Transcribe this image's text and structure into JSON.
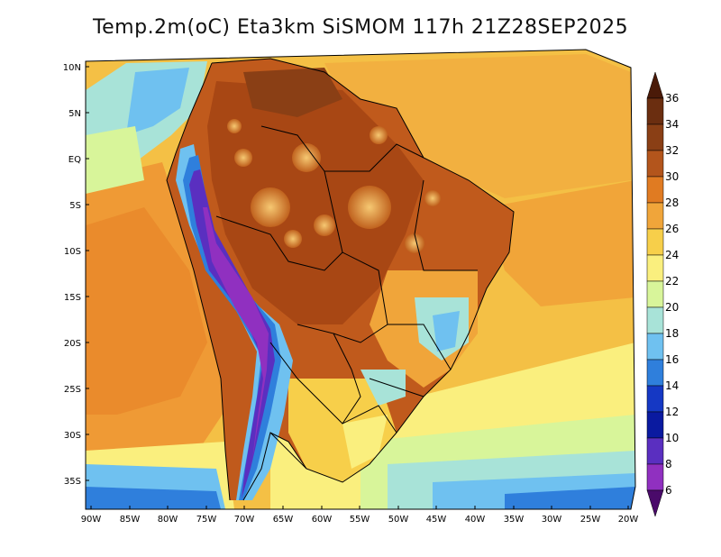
{
  "title": "Temp.2m(oC) Eta3km SiSMOM 117h 21Z28SEP2025",
  "lat_labels": [
    "10N",
    "5N",
    "EQ",
    "5S",
    "10S",
    "15S",
    "20S",
    "25S",
    "30S",
    "35S"
  ],
  "lon_labels": [
    "90W",
    "85W",
    "80W",
    "75W",
    "70W",
    "65W",
    "60W",
    "55W",
    "50W",
    "45W",
    "40W",
    "35W",
    "30W",
    "25W",
    "20W"
  ],
  "colorbar": {
    "labels": [
      "36",
      "34",
      "32",
      "30",
      "28",
      "26",
      "24",
      "22",
      "20",
      "18",
      "16",
      "14",
      "12",
      "10",
      "8",
      "6"
    ],
    "colors": [
      "#4a1a08",
      "#6b2e10",
      "#8a3f15",
      "#b3551c",
      "#e07b22",
      "#f0a53a",
      "#f7cf4a",
      "#faef7e",
      "#d8f59a",
      "#a8e3d8",
      "#6fc1f0",
      "#2f7fdc",
      "#1538c4",
      "#0a1aa0",
      "#5a2fc0",
      "#9030c0",
      "#4a0a6a"
    ]
  }
}
